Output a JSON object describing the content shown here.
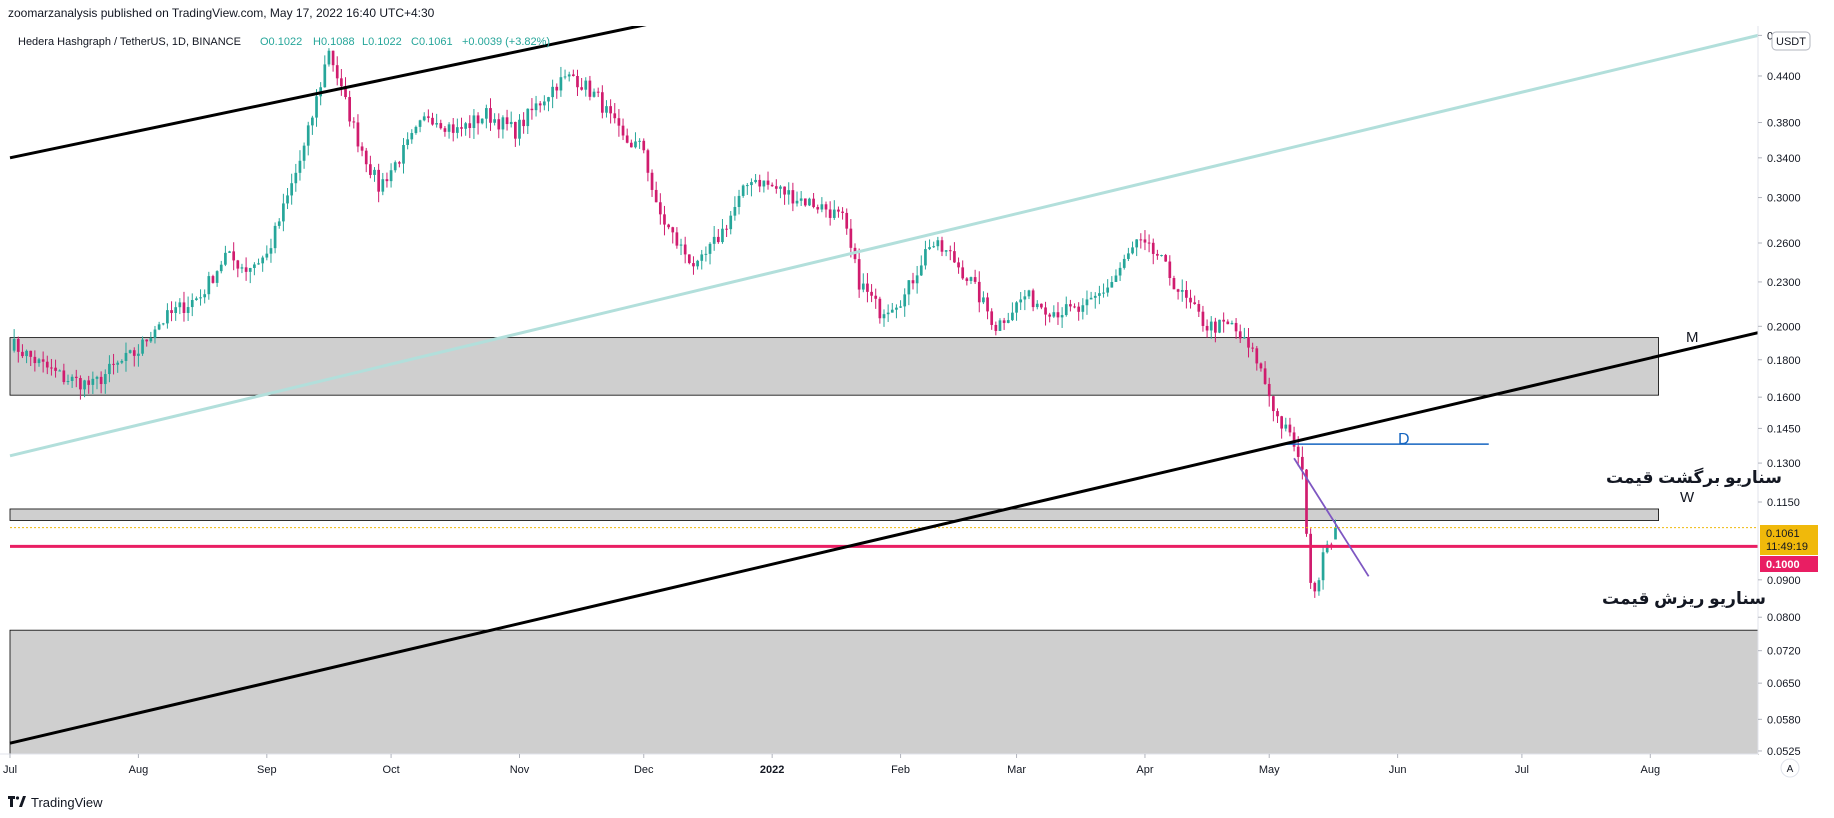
{
  "publish_line": "zoomarzanalysis published on TradingView.com, May 17, 2022 16:40 UTC+4:30",
  "footer": {
    "brand": "TradingView",
    "logo": "tradingview-logo-icon"
  },
  "currency_badge": "USDT",
  "auto_scale_button": "A",
  "legend": {
    "symbol": "Hedera Hashgraph / TetherUS, 1D, BINANCE",
    "open": "O0.1022",
    "high": "H0.1088",
    "low": "L0.1022",
    "close": "C0.1061",
    "change": "+0.0039 (+3.82%)"
  },
  "price_tag": {
    "price": "0.1061",
    "countdown": "11:49:19",
    "color": "#f0b90b"
  },
  "level_tag": {
    "price": "0.1000",
    "color": "#e91e63"
  },
  "colors": {
    "up": "#26a69a",
    "down": "#d01c6e",
    "zone": "#cccccc",
    "trend_light": "#b2dfdb",
    "trend_dark": "#000000",
    "hline_red": "#e91e63",
    "hline_blue": "#1565c0",
    "trend_purple": "#7e57c2"
  },
  "annotations": {
    "m_label": "M",
    "w_label": "W",
    "d_label": "D",
    "bounce_scenario": "سناریو برگشت قیمت",
    "drop_scenario": "سناریو ریزش قیمت"
  },
  "chart_data": {
    "type": "candlestick",
    "symbol": "HBARUSDT",
    "interval": "1D",
    "y_scale": "log",
    "ylim": [
      0.052,
      0.515
    ],
    "y_ticks": [
      0.5,
      0.44,
      0.38,
      0.34,
      0.3,
      0.26,
      0.23,
      0.2,
      0.18,
      0.16,
      0.145,
      0.13,
      0.115,
      0.09,
      0.08,
      0.072,
      0.065,
      0.058,
      0.0525
    ],
    "y_tick_labels": [
      "0.5000",
      "0.4400",
      "0.3800",
      "0.3400",
      "0.3000",
      "0.2600",
      "0.2300",
      "0.2000",
      "0.1800",
      "0.1600",
      "0.1450",
      "0.1300",
      "0.1150",
      "0.0900",
      "0.0800",
      "0.0720",
      "0.0650",
      "0.0580",
      "0.0525"
    ],
    "x_start": "2021-07-01",
    "x_end": "2022-08-27",
    "x_ticks": [
      {
        "date": "2021-07-01",
        "label": "Jul"
      },
      {
        "date": "2021-08-01",
        "label": "Aug"
      },
      {
        "date": "2021-09-01",
        "label": "Sep"
      },
      {
        "date": "2021-10-01",
        "label": "Oct"
      },
      {
        "date": "2021-11-01",
        "label": "Nov"
      },
      {
        "date": "2021-12-01",
        "label": "Dec"
      },
      {
        "date": "2022-01-01",
        "label": "2022"
      },
      {
        "date": "2022-02-01",
        "label": "Feb"
      },
      {
        "date": "2022-03-01",
        "label": "Mar"
      },
      {
        "date": "2022-04-01",
        "label": "Apr"
      },
      {
        "date": "2022-05-01",
        "label": "May"
      },
      {
        "date": "2022-06-01",
        "label": "Jun"
      },
      {
        "date": "2022-07-01",
        "label": "Jul"
      },
      {
        "date": "2022-08-01",
        "label": "Aug"
      }
    ],
    "close_path": [
      [
        "2021-07-01",
        0.19
      ],
      [
        "2021-07-08",
        0.178
      ],
      [
        "2021-07-14",
        0.17
      ],
      [
        "2021-07-21",
        0.166
      ],
      [
        "2021-07-25",
        0.174
      ],
      [
        "2021-08-01",
        0.185
      ],
      [
        "2021-08-05",
        0.2
      ],
      [
        "2021-08-10",
        0.21
      ],
      [
        "2021-08-16",
        0.22
      ],
      [
        "2021-08-22",
        0.25
      ],
      [
        "2021-08-27",
        0.24
      ],
      [
        "2021-09-01",
        0.25
      ],
      [
        "2021-09-06",
        0.3
      ],
      [
        "2021-09-10",
        0.35
      ],
      [
        "2021-09-14",
        0.43
      ],
      [
        "2021-09-16",
        0.48
      ],
      [
        "2021-09-19",
        0.42
      ],
      [
        "2021-09-23",
        0.36
      ],
      [
        "2021-09-28",
        0.31
      ],
      [
        "2021-10-03",
        0.34
      ],
      [
        "2021-10-10",
        0.39
      ],
      [
        "2021-10-17",
        0.37
      ],
      [
        "2021-10-24",
        0.39
      ],
      [
        "2021-10-31",
        0.37
      ],
      [
        "2021-11-05",
        0.4
      ],
      [
        "2021-11-10",
        0.43
      ],
      [
        "2021-11-14",
        0.44
      ],
      [
        "2021-11-20",
        0.41
      ],
      [
        "2021-11-26",
        0.36
      ],
      [
        "2021-12-01",
        0.35
      ],
      [
        "2021-12-04",
        0.29
      ],
      [
        "2021-12-09",
        0.26
      ],
      [
        "2021-12-14",
        0.24
      ],
      [
        "2021-12-20",
        0.27
      ],
      [
        "2021-12-27",
        0.32
      ],
      [
        "2022-01-01",
        0.31
      ],
      [
        "2022-01-07",
        0.3
      ],
      [
        "2022-01-14",
        0.29
      ],
      [
        "2022-01-18",
        0.28
      ],
      [
        "2022-01-22",
        0.23
      ],
      [
        "2022-01-27",
        0.21
      ],
      [
        "2022-02-02",
        0.22
      ],
      [
        "2022-02-08",
        0.26
      ],
      [
        "2022-02-13",
        0.25
      ],
      [
        "2022-02-18",
        0.23
      ],
      [
        "2022-02-24",
        0.2
      ],
      [
        "2022-03-03",
        0.22
      ],
      [
        "2022-03-10",
        0.21
      ],
      [
        "2022-03-17",
        0.21
      ],
      [
        "2022-03-24",
        0.23
      ],
      [
        "2022-03-30",
        0.26
      ],
      [
        "2022-04-04",
        0.25
      ],
      [
        "2022-04-10",
        0.22
      ],
      [
        "2022-04-16",
        0.2
      ],
      [
        "2022-04-22",
        0.2
      ],
      [
        "2022-04-28",
        0.18
      ],
      [
        "2022-05-03",
        0.15
      ],
      [
        "2022-05-07",
        0.138
      ],
      [
        "2022-05-09",
        0.125
      ],
      [
        "2022-05-11",
        0.09
      ],
      [
        "2022-05-12",
        0.085
      ],
      [
        "2022-05-14",
        0.1
      ],
      [
        "2022-05-16",
        0.1022
      ],
      [
        "2022-05-17",
        0.1061
      ]
    ],
    "zones": [
      {
        "label": "M",
        "from": 0.161,
        "to": 0.193,
        "x_from": "2021-07-01",
        "x_to": "2022-08-03"
      },
      {
        "label": "W",
        "from": 0.1085,
        "to": 0.1125,
        "x_from": "2021-07-01",
        "x_to": "2022-08-03"
      },
      {
        "label": "",
        "from": 0.052,
        "to": 0.0768,
        "x_from": "2021-07-01",
        "x_to": "2022-08-27"
      }
    ],
    "trend_lines": [
      {
        "style": "black",
        "points": [
          [
            "2021-07-01",
            0.34
          ],
          [
            "2021-12-24",
            0.55
          ]
        ]
      },
      {
        "style": "light",
        "points": [
          [
            "2021-07-01",
            0.133
          ],
          [
            "2022-08-27",
            0.5
          ]
        ]
      },
      {
        "style": "black",
        "points": [
          [
            "2021-07-01",
            0.0538
          ],
          [
            "2022-08-27",
            0.196
          ]
        ]
      },
      {
        "style": "purple",
        "points": [
          [
            "2022-05-07",
            0.132
          ],
          [
            "2022-05-25",
            0.091
          ]
        ]
      }
    ],
    "horizontal_lines": [
      {
        "style": "red",
        "price": 0.1,
        "x_from": "2021-07-01",
        "x_to": "2022-08-27"
      },
      {
        "style": "blue",
        "price": 0.138,
        "x_from": "2022-05-04",
        "x_to": "2022-06-23"
      },
      {
        "style": "dotted",
        "price": 0.1061,
        "x_from": "2021-07-01",
        "x_to": "2022-08-27"
      }
    ]
  }
}
